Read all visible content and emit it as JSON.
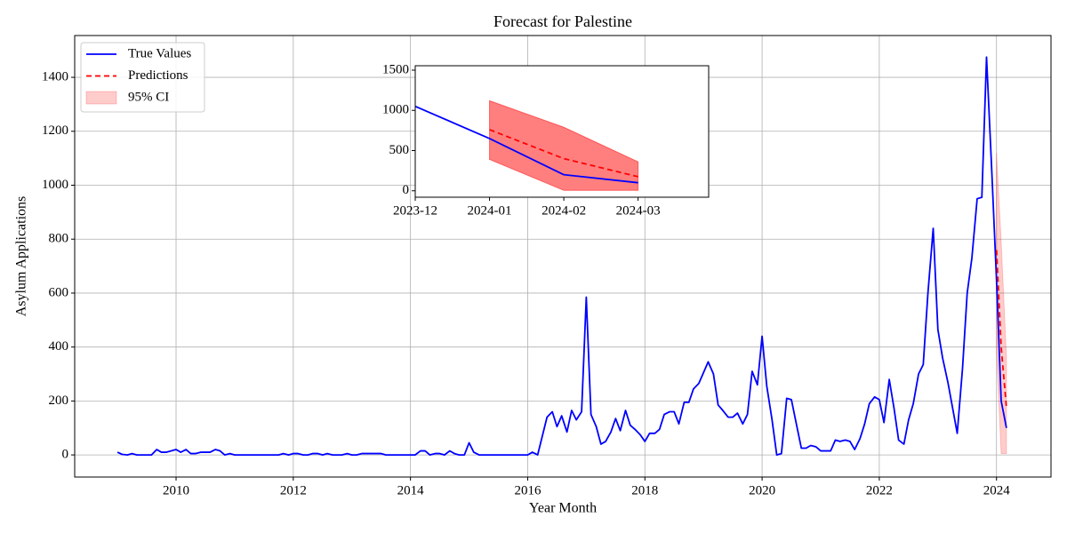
{
  "chart_data": [
    {
      "type": "line",
      "title": "Forecast for Palestine",
      "xlabel": "Year Month",
      "ylabel": "Asylum Applications",
      "x": [
        2009,
        2009.08,
        2009.17,
        2009.25,
        2009.33,
        2009.42,
        2009.5,
        2009.58,
        2009.67,
        2009.75,
        2009.83,
        2009.92,
        2010,
        2010.08,
        2010.17,
        2010.25,
        2010.33,
        2010.42,
        2010.5,
        2010.58,
        2010.67,
        2010.75,
        2010.83,
        2010.92,
        2011,
        2011.08,
        2011.17,
        2011.25,
        2011.33,
        2011.42,
        2011.5,
        2011.58,
        2011.67,
        2011.75,
        2011.83,
        2011.92,
        2012,
        2012.08,
        2012.17,
        2012.25,
        2012.33,
        2012.42,
        2012.5,
        2012.58,
        2012.67,
        2012.75,
        2012.83,
        2012.92,
        2013,
        2013.08,
        2013.17,
        2013.25,
        2013.33,
        2013.42,
        2013.5,
        2013.58,
        2013.67,
        2013.75,
        2013.83,
        2013.92,
        2014,
        2014.08,
        2014.17,
        2014.25,
        2014.33,
        2014.42,
        2014.5,
        2014.58,
        2014.67,
        2014.75,
        2014.83,
        2014.92,
        2015,
        2015.08,
        2015.17,
        2015.25,
        2015.33,
        2015.42,
        2015.5,
        2015.58,
        2015.67,
        2015.75,
        2015.83,
        2015.92,
        2016,
        2016.08,
        2016.17,
        2016.25,
        2016.33,
        2016.42,
        2016.5,
        2016.58,
        2016.67,
        2016.75,
        2016.83,
        2016.92,
        2017,
        2017.08,
        2017.17,
        2017.25,
        2017.33,
        2017.42,
        2017.5,
        2017.58,
        2017.67,
        2017.75,
        2017.83,
        2017.92,
        2018,
        2018.08,
        2018.17,
        2018.25,
        2018.33,
        2018.42,
        2018.5,
        2018.58,
        2018.67,
        2018.75,
        2018.83,
        2018.92,
        2019,
        2019.08,
        2019.17,
        2019.25,
        2019.33,
        2019.42,
        2019.5,
        2019.58,
        2019.67,
        2019.75,
        2019.83,
        2019.92,
        2020,
        2020.08,
        2020.17,
        2020.25,
        2020.33,
        2020.42,
        2020.5,
        2020.58,
        2020.67,
        2020.75,
        2020.83,
        2020.92,
        2021,
        2021.08,
        2021.17,
        2021.25,
        2021.33,
        2021.42,
        2021.5,
        2021.58,
        2021.67,
        2021.75,
        2021.83,
        2021.92,
        2022,
        2022.08,
        2022.17,
        2022.25,
        2022.33,
        2022.42,
        2022.5,
        2022.58,
        2022.67,
        2022.75,
        2022.83,
        2022.92,
        2023,
        2023.08,
        2023.17,
        2023.25,
        2023.33,
        2023.42,
        2023.5,
        2023.58,
        2023.67,
        2023.75,
        2023.83,
        2023.92,
        2024,
        2024.08,
        2024.17
      ],
      "xlim": [
        2008.27,
        2024.93
      ],
      "xticks": [
        2010,
        2012,
        2014,
        2016,
        2018,
        2020,
        2022,
        2024
      ],
      "ylim": [
        -82,
        1555
      ],
      "yticks": [
        0,
        200,
        400,
        600,
        800,
        1000,
        1200,
        1400
      ],
      "grid": true,
      "legend": "upper left",
      "series": [
        {
          "name": "True Values",
          "color": "#0000ff",
          "values": [
            10,
            2,
            0,
            5,
            0,
            0,
            0,
            0,
            20,
            10,
            10,
            15,
            20,
            10,
            20,
            5,
            5,
            10,
            10,
            10,
            20,
            15,
            0,
            5,
            0,
            0,
            0,
            0,
            0,
            0,
            0,
            0,
            0,
            0,
            5,
            0,
            5,
            5,
            0,
            0,
            5,
            5,
            0,
            5,
            0,
            0,
            0,
            5,
            0,
            0,
            5,
            5,
            5,
            5,
            5,
            0,
            0,
            0,
            0,
            0,
            0,
            0,
            15,
            15,
            0,
            5,
            5,
            0,
            15,
            5,
            0,
            0,
            45,
            10,
            0,
            0,
            0,
            0,
            0,
            0,
            0,
            0,
            0,
            0,
            0,
            10,
            0,
            70,
            140,
            160,
            105,
            145,
            85,
            165,
            130,
            160,
            585,
            150,
            105,
            40,
            50,
            85,
            135,
            90,
            165,
            110,
            95,
            75,
            50,
            80,
            80,
            95,
            150,
            160,
            160,
            115,
            195,
            195,
            245,
            265,
            305,
            345,
            300,
            185,
            165,
            140,
            140,
            155,
            115,
            150,
            310,
            260,
            440,
            255,
            130,
            0,
            5,
            210,
            205,
            120,
            25,
            25,
            35,
            30,
            15,
            15,
            15,
            55,
            50,
            55,
            50,
            20,
            60,
            115,
            190,
            215,
            205,
            120,
            280,
            175,
            55,
            40,
            130,
            190,
            300,
            335,
            600,
            840,
            465,
            360,
            270,
            175,
            80,
            320,
            600,
            730,
            950,
            955,
            1475,
            1050,
            650,
            200,
            100
          ]
        },
        {
          "name": "Predictions",
          "color": "#ff0000",
          "dashed": true,
          "x": [
            2024,
            2024.08,
            2024.17
          ],
          "values": [
            760,
            400,
            175
          ]
        }
      ],
      "band": {
        "name": "95% CI",
        "color": "#ff0000",
        "opacity": 0.2,
        "x": [
          2024,
          2024.08,
          2024.17
        ],
        "lower": [
          390,
          5,
          5
        ],
        "upper": [
          1120,
          790,
          360
        ]
      }
    },
    {
      "type": "line",
      "categories": [
        "2023-12",
        "2024-01",
        "2024-02",
        "2024-03"
      ],
      "ylim": [
        -80,
        1555
      ],
      "yticks": [
        0,
        500,
        1000,
        1500
      ],
      "grid": false,
      "series": [
        {
          "color": "#0000ff",
          "values": [
            1050,
            650,
            200,
            100
          ]
        },
        {
          "color": "#ff0000",
          "dashed": true,
          "values": [
            null,
            760,
            400,
            175
          ]
        }
      ],
      "band": {
        "color": "#ff0000",
        "opacity": 0.5,
        "lower": [
          null,
          390,
          5,
          5
        ],
        "upper": [
          null,
          1120,
          790,
          360
        ]
      }
    }
  ]
}
